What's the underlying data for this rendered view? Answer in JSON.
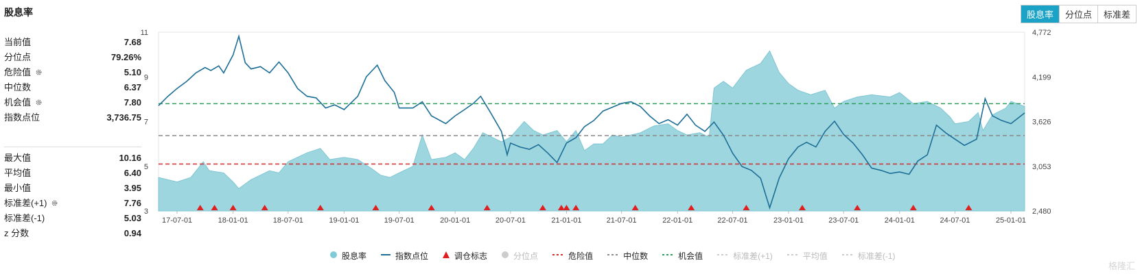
{
  "title": "股息率",
  "tabs": [
    {
      "label": "股息率",
      "active": true
    },
    {
      "label": "分位点",
      "active": false
    },
    {
      "label": "标准差",
      "active": false
    }
  ],
  "stats_top": [
    {
      "label": "当前值",
      "value": "7.68",
      "gear": false
    },
    {
      "label": "分位点",
      "value": "79.26%",
      "gear": false
    },
    {
      "label": "危险值",
      "value": "5.10",
      "gear": true
    },
    {
      "label": "中位数",
      "value": "6.37",
      "gear": false
    },
    {
      "label": "机会值",
      "value": "7.80",
      "gear": true
    },
    {
      "label": "指数点位",
      "value": "3,736.75",
      "gear": false
    }
  ],
  "stats_bottom": [
    {
      "label": "最大值",
      "value": "10.16",
      "gear": false
    },
    {
      "label": "平均值",
      "value": "6.40",
      "gear": false
    },
    {
      "label": "最小值",
      "value": "3.95",
      "gear": false
    },
    {
      "label": "标准差(+1)",
      "value": "7.76",
      "gear": true
    },
    {
      "label": "标准差(-1)",
      "value": "5.03",
      "gear": false
    },
    {
      "label": "z 分数",
      "value": "0.94",
      "gear": false
    }
  ],
  "legend": [
    {
      "label": "股息率",
      "type": "dot",
      "color": "#7fcbd8",
      "active": true
    },
    {
      "label": "指数点位",
      "type": "line",
      "color": "#1c6e96",
      "active": true
    },
    {
      "label": "调仓标志",
      "type": "triangle",
      "color": "#e02020",
      "active": true
    },
    {
      "label": "分位点",
      "type": "dot",
      "color": "#cccccc",
      "active": false
    },
    {
      "label": "危险值",
      "type": "dash",
      "color": "#d62728",
      "active": true
    },
    {
      "label": "中位数",
      "type": "dash",
      "color": "#888888",
      "active": true
    },
    {
      "label": "机会值",
      "type": "dash",
      "color": "#2ca05a",
      "active": true
    },
    {
      "label": "标准差(+1)",
      "type": "dash",
      "color": "#cccccc",
      "active": false
    },
    {
      "label": "平均值",
      "type": "dash",
      "color": "#cccccc",
      "active": false
    },
    {
      "label": "标准差(-1)",
      "type": "dash",
      "color": "#cccccc",
      "active": false
    }
  ],
  "watermark": "格隆汇",
  "chart_data": {
    "type": "area",
    "x_ticks": [
      "17-07-01",
      "18-01-01",
      "18-07-01",
      "19-01-01",
      "19-07-01",
      "20-01-01",
      "20-07-01",
      "21-01-01",
      "21-07-01",
      "22-01-01",
      "22-07-01",
      "23-01-01",
      "23-07-01",
      "24-01-01",
      "24-07-01",
      "25-01-01"
    ],
    "y_left_ticks": [
      "3",
      "5",
      "7",
      "9",
      "11"
    ],
    "y_left_range": [
      3,
      11
    ],
    "y_right_ticks": [
      "2,480",
      "3,053",
      "3,626",
      "4,199",
      "4,772"
    ],
    "y_right_range": [
      2480,
      4772
    ],
    "x_range": [
      "2017-05-01",
      "2025-02-15"
    ],
    "reference_lines": {
      "danger": 5.1,
      "median": 6.37,
      "opportunity": 7.8
    },
    "series": [
      {
        "name": "股息率",
        "axis": "left",
        "points": [
          [
            "2017-05-01",
            4.5
          ],
          [
            "2017-07-01",
            4.3
          ],
          [
            "2017-08-15",
            4.5
          ],
          [
            "2017-09-25",
            5.2
          ],
          [
            "2017-10-15",
            4.8
          ],
          [
            "2017-12-01",
            4.7
          ],
          [
            "2018-01-01",
            4.3
          ],
          [
            "2018-01-20",
            4.0
          ],
          [
            "2018-03-01",
            4.4
          ],
          [
            "2018-05-01",
            4.8
          ],
          [
            "2018-06-01",
            4.7
          ],
          [
            "2018-07-01",
            5.2
          ],
          [
            "2018-09-01",
            5.6
          ],
          [
            "2018-10-15",
            5.8
          ],
          [
            "2018-11-15",
            5.3
          ],
          [
            "2019-01-01",
            5.4
          ],
          [
            "2019-02-15",
            5.3
          ],
          [
            "2019-04-01",
            4.9
          ],
          [
            "2019-05-01",
            4.6
          ],
          [
            "2019-06-01",
            4.5
          ],
          [
            "2019-07-01",
            4.7
          ],
          [
            "2019-08-15",
            5.0
          ],
          [
            "2019-09-15",
            6.4
          ],
          [
            "2019-10-15",
            5.3
          ],
          [
            "2019-12-01",
            5.4
          ],
          [
            "2020-01-01",
            5.6
          ],
          [
            "2020-02-01",
            5.3
          ],
          [
            "2020-03-01",
            5.8
          ],
          [
            "2020-04-01",
            6.5
          ],
          [
            "2020-05-01",
            6.3
          ],
          [
            "2020-06-01",
            6.1
          ],
          [
            "2020-07-01",
            6.3
          ],
          [
            "2020-08-15",
            7.0
          ],
          [
            "2020-09-15",
            6.6
          ],
          [
            "2020-10-15",
            6.4
          ],
          [
            "2020-12-01",
            6.6
          ],
          [
            "2021-01-01",
            6.1
          ],
          [
            "2021-02-01",
            6.6
          ],
          [
            "2021-03-01",
            5.7
          ],
          [
            "2021-04-01",
            6.0
          ],
          [
            "2021-05-01",
            6.0
          ],
          [
            "2021-06-01",
            6.4
          ],
          [
            "2021-07-01",
            6.3
          ],
          [
            "2021-09-01",
            6.5
          ],
          [
            "2021-10-15",
            6.8
          ],
          [
            "2021-12-01",
            6.9
          ],
          [
            "2022-01-01",
            6.6
          ],
          [
            "2022-02-01",
            6.4
          ],
          [
            "2022-03-15",
            6.5
          ],
          [
            "2022-04-15",
            6.3
          ],
          [
            "2022-05-01",
            8.5
          ],
          [
            "2022-06-01",
            8.8
          ],
          [
            "2022-07-01",
            8.5
          ],
          [
            "2022-08-15",
            9.3
          ],
          [
            "2022-10-01",
            9.6
          ],
          [
            "2022-10-31",
            10.16
          ],
          [
            "2022-12-01",
            9.2
          ],
          [
            "2023-01-01",
            8.7
          ],
          [
            "2023-02-01",
            8.4
          ],
          [
            "2023-03-15",
            8.2
          ],
          [
            "2023-05-01",
            8.4
          ],
          [
            "2023-06-01",
            7.6
          ],
          [
            "2023-07-01",
            7.9
          ],
          [
            "2023-08-15",
            8.1
          ],
          [
            "2023-10-01",
            8.2
          ],
          [
            "2023-12-01",
            8.1
          ],
          [
            "2024-01-01",
            8.3
          ],
          [
            "2024-02-15",
            7.8
          ],
          [
            "2024-04-01",
            7.9
          ],
          [
            "2024-05-15",
            7.6
          ],
          [
            "2024-06-15",
            7.2
          ],
          [
            "2024-07-01",
            6.9
          ],
          [
            "2024-08-15",
            7.0
          ],
          [
            "2024-09-15",
            7.4
          ],
          [
            "2024-10-01",
            6.6
          ],
          [
            "2024-11-01",
            7.3
          ],
          [
            "2024-12-15",
            7.6
          ],
          [
            "2025-01-01",
            7.9
          ],
          [
            "2025-02-15",
            7.68
          ]
        ]
      },
      {
        "name": "指数点位",
        "axis": "right",
        "points": [
          [
            "2017-05-01",
            3830
          ],
          [
            "2017-06-01",
            3950
          ],
          [
            "2017-07-01",
            4050
          ],
          [
            "2017-08-01",
            4140
          ],
          [
            "2017-09-01",
            4250
          ],
          [
            "2017-10-01",
            4320
          ],
          [
            "2017-10-20",
            4280
          ],
          [
            "2017-11-15",
            4340
          ],
          [
            "2017-12-01",
            4250
          ],
          [
            "2018-01-01",
            4480
          ],
          [
            "2018-01-20",
            4720
          ],
          [
            "2018-02-10",
            4380
          ],
          [
            "2018-03-01",
            4300
          ],
          [
            "2018-04-01",
            4330
          ],
          [
            "2018-05-01",
            4250
          ],
          [
            "2018-06-01",
            4390
          ],
          [
            "2018-07-01",
            4250
          ],
          [
            "2018-08-01",
            4050
          ],
          [
            "2018-09-01",
            3950
          ],
          [
            "2018-10-01",
            3930
          ],
          [
            "2018-11-01",
            3800
          ],
          [
            "2018-12-01",
            3840
          ],
          [
            "2019-01-01",
            3780
          ],
          [
            "2019-02-15",
            3950
          ],
          [
            "2019-03-15",
            4200
          ],
          [
            "2019-04-20",
            4350
          ],
          [
            "2019-05-15",
            4150
          ],
          [
            "2019-06-15",
            4000
          ],
          [
            "2019-07-01",
            3800
          ],
          [
            "2019-08-15",
            3800
          ],
          [
            "2019-09-15",
            3880
          ],
          [
            "2019-10-15",
            3700
          ],
          [
            "2019-12-01",
            3600
          ],
          [
            "2020-01-01",
            3700
          ],
          [
            "2020-02-01",
            3780
          ],
          [
            "2020-03-01",
            3860
          ],
          [
            "2020-03-25",
            3950
          ],
          [
            "2020-04-25",
            3750
          ],
          [
            "2020-06-01",
            3500
          ],
          [
            "2020-06-20",
            3200
          ],
          [
            "2020-07-01",
            3350
          ],
          [
            "2020-08-01",
            3300
          ],
          [
            "2020-09-01",
            3270
          ],
          [
            "2020-10-01",
            3330
          ],
          [
            "2020-11-01",
            3220
          ],
          [
            "2020-12-01",
            3100
          ],
          [
            "2021-01-01",
            3350
          ],
          [
            "2021-02-01",
            3420
          ],
          [
            "2021-03-01",
            3560
          ],
          [
            "2021-04-01",
            3640
          ],
          [
            "2021-05-01",
            3760
          ],
          [
            "2021-06-01",
            3810
          ],
          [
            "2021-07-01",
            3860
          ],
          [
            "2021-08-01",
            3880
          ],
          [
            "2021-09-01",
            3820
          ],
          [
            "2021-10-01",
            3700
          ],
          [
            "2021-11-01",
            3600
          ],
          [
            "2021-12-01",
            3650
          ],
          [
            "2022-01-01",
            3580
          ],
          [
            "2022-02-01",
            3720
          ],
          [
            "2022-03-01",
            3580
          ],
          [
            "2022-04-01",
            3500
          ],
          [
            "2022-05-01",
            3620
          ],
          [
            "2022-06-01",
            3450
          ],
          [
            "2022-07-01",
            3220
          ],
          [
            "2022-08-01",
            3050
          ],
          [
            "2022-09-01",
            3000
          ],
          [
            "2022-10-01",
            2900
          ],
          [
            "2022-10-31",
            2520
          ],
          [
            "2022-12-01",
            2900
          ],
          [
            "2023-01-01",
            3150
          ],
          [
            "2023-02-01",
            3300
          ],
          [
            "2023-03-01",
            3360
          ],
          [
            "2023-04-01",
            3300
          ],
          [
            "2023-05-01",
            3500
          ],
          [
            "2023-06-01",
            3630
          ],
          [
            "2023-07-01",
            3460
          ],
          [
            "2023-08-01",
            3350
          ],
          [
            "2023-09-01",
            3200
          ],
          [
            "2023-10-01",
            3030
          ],
          [
            "2023-11-01",
            3000
          ],
          [
            "2023-12-01",
            2960
          ],
          [
            "2024-01-01",
            2980
          ],
          [
            "2024-02-01",
            2950
          ],
          [
            "2024-03-01",
            3120
          ],
          [
            "2024-04-01",
            3200
          ],
          [
            "2024-05-01",
            3580
          ],
          [
            "2024-06-01",
            3480
          ],
          [
            "2024-07-01",
            3400
          ],
          [
            "2024-08-01",
            3320
          ],
          [
            "2024-09-10",
            3400
          ],
          [
            "2024-10-08",
            3920
          ],
          [
            "2024-11-01",
            3700
          ],
          [
            "2024-12-01",
            3640
          ],
          [
            "2025-01-01",
            3600
          ],
          [
            "2025-02-15",
            3736.75
          ]
        ]
      }
    ],
    "rebalance_markers": [
      "2017-09-15",
      "2017-11-01",
      "2018-01-01",
      "2018-04-15",
      "2018-10-15",
      "2019-04-15",
      "2019-10-15",
      "2020-04-15",
      "2020-10-15",
      "2020-12-15",
      "2021-01-01",
      "2021-02-01",
      "2021-08-15",
      "2022-02-15",
      "2022-08-15",
      "2023-02-15",
      "2023-08-15",
      "2024-02-15",
      "2024-08-15"
    ]
  }
}
